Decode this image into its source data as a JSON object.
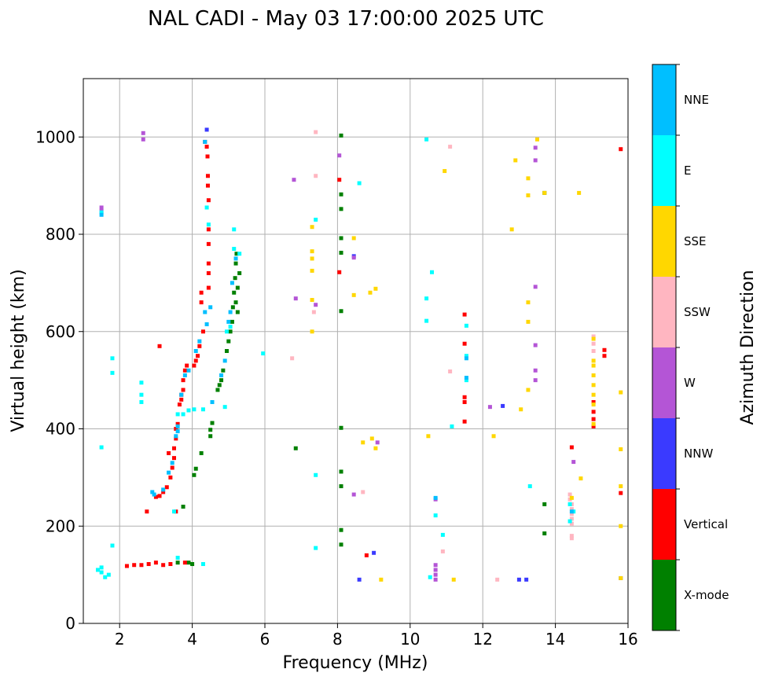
{
  "chart_data": {
    "type": "scatter",
    "title": "NAL CADI - May 03 17:00:00 2025 UTC",
    "xlabel": "Frequency (MHz)",
    "ylabel": "Virtual height (km)",
    "xlim": [
      1,
      16
    ],
    "ylim": [
      0,
      1120
    ],
    "xticks": [
      "2",
      "4",
      "6",
      "8",
      "10",
      "12",
      "14",
      "16"
    ],
    "yticks": [
      "0",
      "200",
      "400",
      "600",
      "800",
      "1000"
    ],
    "grid": true,
    "colorbar": {
      "label": "Azimuth Direction",
      "categories": [
        "X-mode",
        "Vertical",
        "NNW",
        "W",
        "SSW",
        "SSE",
        "E",
        "NNE"
      ],
      "colors": [
        "#008000",
        "#ff0000",
        "#3a3aff",
        "#b455d6",
        "#ffb6c1",
        "#ffd700",
        "#00ffff",
        "#00bfff"
      ]
    },
    "series": [
      {
        "category": "X-mode",
        "points": [
          [
            4.05,
            305
          ],
          [
            4.1,
            318
          ],
          [
            4.25,
            350
          ],
          [
            4.55,
            412
          ],
          [
            4.5,
            398
          ],
          [
            4.5,
            385
          ],
          [
            4.7,
            480
          ],
          [
            4.75,
            490
          ],
          [
            4.8,
            500
          ],
          [
            4.85,
            520
          ],
          [
            4.95,
            560
          ],
          [
            5.0,
            580
          ],
          [
            5.05,
            600
          ],
          [
            5.1,
            620
          ],
          [
            5.12,
            650
          ],
          [
            5.15,
            680
          ],
          [
            5.18,
            710
          ],
          [
            5.2,
            740
          ],
          [
            5.22,
            760
          ],
          [
            5.25,
            690
          ],
          [
            5.3,
            720
          ],
          [
            5.2,
            660
          ],
          [
            5.25,
            640
          ],
          [
            3.75,
            240
          ],
          [
            6.85,
            360
          ],
          [
            8.1,
            1003
          ],
          [
            8.1,
            882
          ],
          [
            8.1,
            852
          ],
          [
            8.1,
            792
          ],
          [
            8.1,
            762
          ],
          [
            8.1,
            642
          ],
          [
            8.1,
            402
          ],
          [
            8.1,
            312
          ],
          [
            8.1,
            282
          ],
          [
            8.1,
            192
          ],
          [
            8.1,
            162
          ],
          [
            13.7,
            885
          ],
          [
            13.7,
            245
          ],
          [
            13.7,
            185
          ],
          [
            3.6,
            125
          ],
          [
            3.9,
            125
          ],
          [
            4.0,
            122
          ]
        ]
      },
      {
        "category": "Vertical",
        "points": [
          [
            4.35,
            990
          ],
          [
            4.4,
            980
          ],
          [
            4.42,
            960
          ],
          [
            4.43,
            920
          ],
          [
            4.43,
            900
          ],
          [
            4.45,
            870
          ],
          [
            4.45,
            810
          ],
          [
            4.45,
            780
          ],
          [
            4.45,
            740
          ],
          [
            4.45,
            720
          ],
          [
            4.45,
            690
          ],
          [
            4.25,
            680
          ],
          [
            4.25,
            660
          ],
          [
            4.3,
            600
          ],
          [
            4.2,
            570
          ],
          [
            4.15,
            550
          ],
          [
            4.1,
            540
          ],
          [
            4.05,
            530
          ],
          [
            3.85,
            530
          ],
          [
            3.8,
            520
          ],
          [
            3.75,
            500
          ],
          [
            3.75,
            480
          ],
          [
            3.7,
            470
          ],
          [
            3.7,
            460
          ],
          [
            3.65,
            450
          ],
          [
            3.6,
            410
          ],
          [
            3.55,
            400
          ],
          [
            3.55,
            380
          ],
          [
            3.5,
            360
          ],
          [
            3.5,
            340
          ],
          [
            3.45,
            320
          ],
          [
            3.4,
            300
          ],
          [
            3.3,
            280
          ],
          [
            3.2,
            270
          ],
          [
            3.1,
            262
          ],
          [
            3.0,
            260
          ],
          [
            2.75,
            230
          ],
          [
            3.1,
            570
          ],
          [
            3.35,
            350
          ],
          [
            3.55,
            230
          ],
          [
            8.05,
            912
          ],
          [
            8.05,
            722
          ],
          [
            8.8,
            140
          ],
          [
            11.5,
            635
          ],
          [
            11.5,
            575
          ],
          [
            11.5,
            465
          ],
          [
            11.5,
            455
          ],
          [
            11.5,
            415
          ],
          [
            14.45,
            362
          ],
          [
            15.05,
            455
          ],
          [
            15.05,
            435
          ],
          [
            15.05,
            420
          ],
          [
            15.05,
            405
          ],
          [
            15.35,
            562
          ],
          [
            15.35,
            550
          ],
          [
            15.8,
            975
          ],
          [
            15.8,
            268
          ],
          [
            2.6,
            120
          ],
          [
            2.8,
            122
          ],
          [
            3.0,
            125
          ],
          [
            3.2,
            120
          ],
          [
            3.4,
            122
          ],
          [
            3.8,
            125
          ],
          [
            2.2,
            118
          ],
          [
            2.4,
            120
          ]
        ]
      },
      {
        "category": "NNW",
        "points": [
          [
            8.45,
            755
          ],
          [
            8.6,
            90
          ],
          [
            9.0,
            145
          ],
          [
            12.55,
            447
          ],
          [
            13.0,
            90
          ],
          [
            13.2,
            90
          ],
          [
            4.4,
            1015
          ],
          [
            15.8,
            93
          ]
        ]
      },
      {
        "category": "W",
        "points": [
          [
            1.5,
            855
          ],
          [
            1.5,
            848
          ],
          [
            6.8,
            912
          ],
          [
            6.85,
            668
          ],
          [
            7.4,
            655
          ],
          [
            8.05,
            962
          ],
          [
            8.45,
            752
          ],
          [
            9.1,
            372
          ],
          [
            10.7,
            120
          ],
          [
            10.7,
            110
          ],
          [
            10.7,
            100
          ],
          [
            10.7,
            90
          ],
          [
            10.7,
            255
          ],
          [
            13.45,
            978
          ],
          [
            13.45,
            952
          ],
          [
            13.45,
            692
          ],
          [
            13.45,
            572
          ],
          [
            13.45,
            520
          ],
          [
            13.45,
            500
          ],
          [
            12.2,
            445
          ],
          [
            8.45,
            265
          ],
          [
            14.5,
            332
          ],
          [
            2.65,
            1008
          ],
          [
            2.65,
            995
          ]
        ]
      },
      {
        "category": "SSW",
        "points": [
          [
            7.4,
            1010
          ],
          [
            7.4,
            920
          ],
          [
            6.75,
            545
          ],
          [
            8.7,
            270
          ],
          [
            11.1,
            980
          ],
          [
            11.1,
            518
          ],
          [
            10.9,
            148
          ],
          [
            14.4,
            265
          ],
          [
            14.4,
            255
          ],
          [
            14.45,
            245
          ],
          [
            14.45,
            235
          ],
          [
            14.45,
            225
          ],
          [
            14.45,
            215
          ],
          [
            14.45,
            205
          ],
          [
            14.45,
            180
          ],
          [
            14.45,
            175
          ],
          [
            15.05,
            590
          ],
          [
            15.05,
            575
          ],
          [
            15.05,
            560
          ],
          [
            12.4,
            90
          ],
          [
            7.35,
            640
          ]
        ]
      },
      {
        "category": "SSE",
        "points": [
          [
            7.3,
            815
          ],
          [
            7.3,
            765
          ],
          [
            7.3,
            750
          ],
          [
            7.3,
            725
          ],
          [
            7.3,
            665
          ],
          [
            7.3,
            600
          ],
          [
            8.45,
            792
          ],
          [
            8.45,
            675
          ],
          [
            8.9,
            680
          ],
          [
            9.05,
            688
          ],
          [
            8.95,
            380
          ],
          [
            8.7,
            372
          ],
          [
            9.05,
            360
          ],
          [
            9.2,
            90
          ],
          [
            10.5,
            385
          ],
          [
            10.95,
            930
          ],
          [
            11.2,
            90
          ],
          [
            12.3,
            385
          ],
          [
            12.9,
            952
          ],
          [
            13.05,
            440
          ],
          [
            13.25,
            480
          ],
          [
            13.25,
            620
          ],
          [
            13.25,
            660
          ],
          [
            13.25,
            880
          ],
          [
            13.25,
            915
          ],
          [
            13.5,
            995
          ],
          [
            13.7,
            885
          ],
          [
            14.65,
            885
          ],
          [
            14.7,
            298
          ],
          [
            14.45,
            258
          ],
          [
            15.05,
            585
          ],
          [
            15.05,
            540
          ],
          [
            15.05,
            530
          ],
          [
            15.05,
            510
          ],
          [
            15.05,
            490
          ],
          [
            15.05,
            470
          ],
          [
            15.05,
            450
          ],
          [
            15.05,
            410
          ],
          [
            15.8,
            475
          ],
          [
            15.8,
            358
          ],
          [
            15.8,
            282
          ],
          [
            15.8,
            200
          ],
          [
            15.8,
            93
          ],
          [
            12.8,
            810
          ]
        ]
      },
      {
        "category": "E",
        "points": [
          [
            1.5,
            845
          ],
          [
            1.8,
            545
          ],
          [
            1.8,
            515
          ],
          [
            2.6,
            495
          ],
          [
            2.6,
            470
          ],
          [
            2.6,
            455
          ],
          [
            3.5,
            230
          ],
          [
            3.6,
            430
          ],
          [
            3.75,
            430
          ],
          [
            3.9,
            438
          ],
          [
            4.05,
            440
          ],
          [
            4.3,
            440
          ],
          [
            4.4,
            855
          ],
          [
            4.45,
            820
          ],
          [
            4.9,
            445
          ],
          [
            4.95,
            600
          ],
          [
            5.05,
            610
          ],
          [
            5.15,
            770
          ],
          [
            5.3,
            760
          ],
          [
            5.15,
            810
          ],
          [
            5.95,
            555
          ],
          [
            7.4,
            830
          ],
          [
            7.4,
            155
          ],
          [
            7.4,
            305
          ],
          [
            8.6,
            905
          ],
          [
            10.6,
            722
          ],
          [
            10.45,
            668
          ],
          [
            10.45,
            622
          ],
          [
            10.7,
            222
          ],
          [
            10.55,
            95
          ],
          [
            10.9,
            182
          ],
          [
            10.45,
            995
          ],
          [
            11.55,
            612
          ],
          [
            11.55,
            550
          ],
          [
            11.55,
            500
          ],
          [
            11.15,
            405
          ],
          [
            13.3,
            282
          ],
          [
            14.4,
            245
          ],
          [
            14.5,
            230
          ],
          [
            14.4,
            210
          ],
          [
            1.5,
            362
          ],
          [
            1.5,
            115
          ],
          [
            1.5,
            105
          ],
          [
            1.6,
            95
          ],
          [
            1.7,
            100
          ],
          [
            1.8,
            160
          ],
          [
            1.4,
            110
          ],
          [
            3.6,
            135
          ],
          [
            4.3,
            122
          ]
        ]
      },
      {
        "category": "NNE",
        "points": [
          [
            4.35,
            990
          ],
          [
            4.5,
            650
          ],
          [
            4.4,
            615
          ],
          [
            4.35,
            640
          ],
          [
            4.2,
            580
          ],
          [
            4.1,
            560
          ],
          [
            3.9,
            520
          ],
          [
            3.8,
            510
          ],
          [
            3.7,
            470
          ],
          [
            3.6,
            405
          ],
          [
            3.6,
            395
          ],
          [
            3.55,
            385
          ],
          [
            3.45,
            330
          ],
          [
            3.35,
            310
          ],
          [
            3.2,
            275
          ],
          [
            2.9,
            270
          ],
          [
            2.95,
            265
          ],
          [
            5.05,
            640
          ],
          [
            5.1,
            700
          ],
          [
            5.0,
            620
          ],
          [
            5.2,
            750
          ],
          [
            4.9,
            540
          ],
          [
            4.8,
            510
          ],
          [
            4.55,
            455
          ],
          [
            11.55,
            505
          ],
          [
            11.55,
            545
          ],
          [
            14.45,
            230
          ],
          [
            1.5,
            840
          ],
          [
            10.7,
            258
          ]
        ]
      }
    ]
  }
}
